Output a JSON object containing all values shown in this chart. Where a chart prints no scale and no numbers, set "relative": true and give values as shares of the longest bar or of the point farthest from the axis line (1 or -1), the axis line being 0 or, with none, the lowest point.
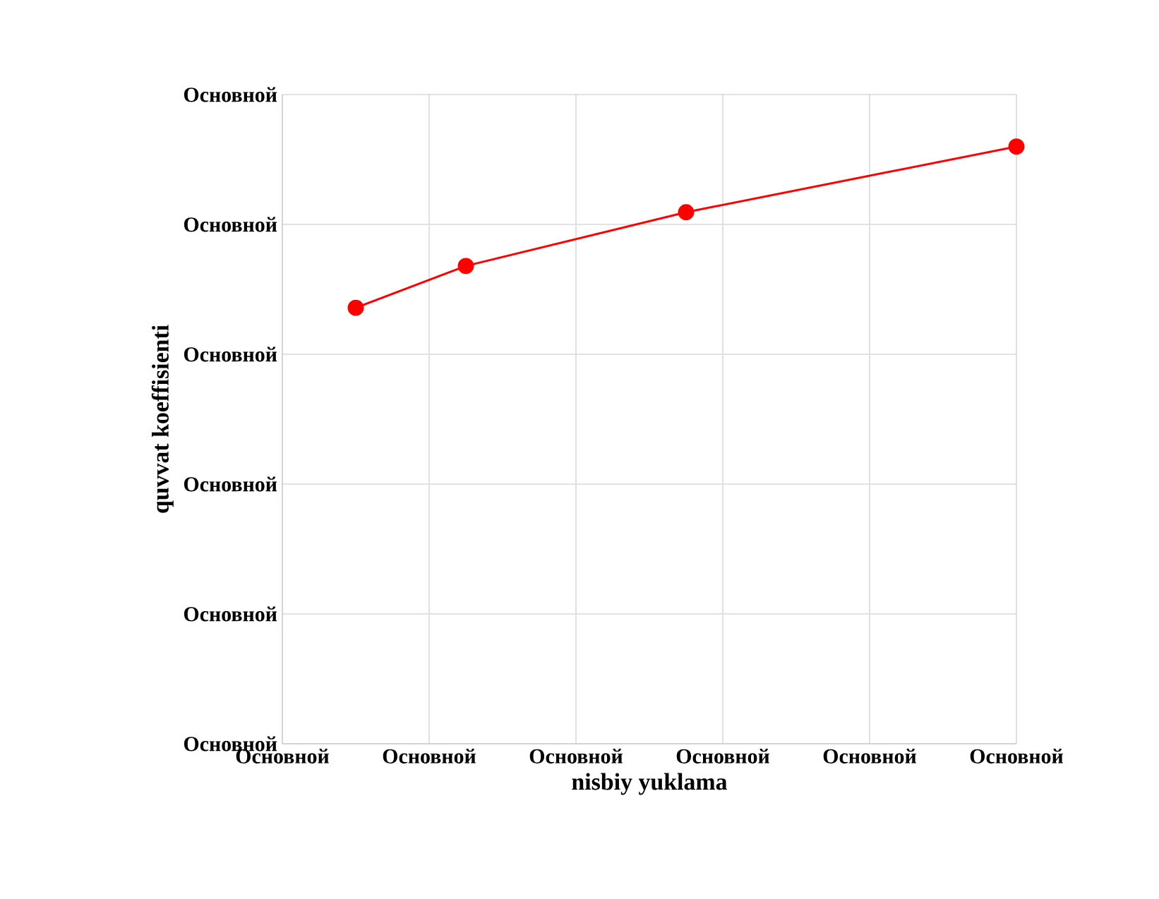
{
  "chart_data": {
    "type": "line",
    "xlabel": "nisbiy  yuklama",
    "ylabel": "quvvat  koeffisienti",
    "categories": [
      "Основной",
      null,
      null,
      null,
      "Основной",
      null,
      null,
      null,
      "Основной",
      null,
      null,
      null,
      "Основной",
      null,
      null,
      null,
      "Основной",
      null,
      null,
      null,
      "Основной"
    ],
    "relative": true,
    "annotations": [
      "Основной",
      "Основной",
      "Основной",
      "Основной",
      "Основной",
      "Основной"
    ],
    "series": [
      {
        "color": "#ff0000",
        "values": [
          null,
          null,
          0.73,
          null,
          null,
          0.8,
          null,
          null,
          null,
          null,
          null,
          0.89,
          null,
          null,
          null,
          null,
          null,
          null,
          null,
          null,
          1
        ]
      }
    ],
    "marker": "circle",
    "line_style": "solid",
    "grid": true
  }
}
